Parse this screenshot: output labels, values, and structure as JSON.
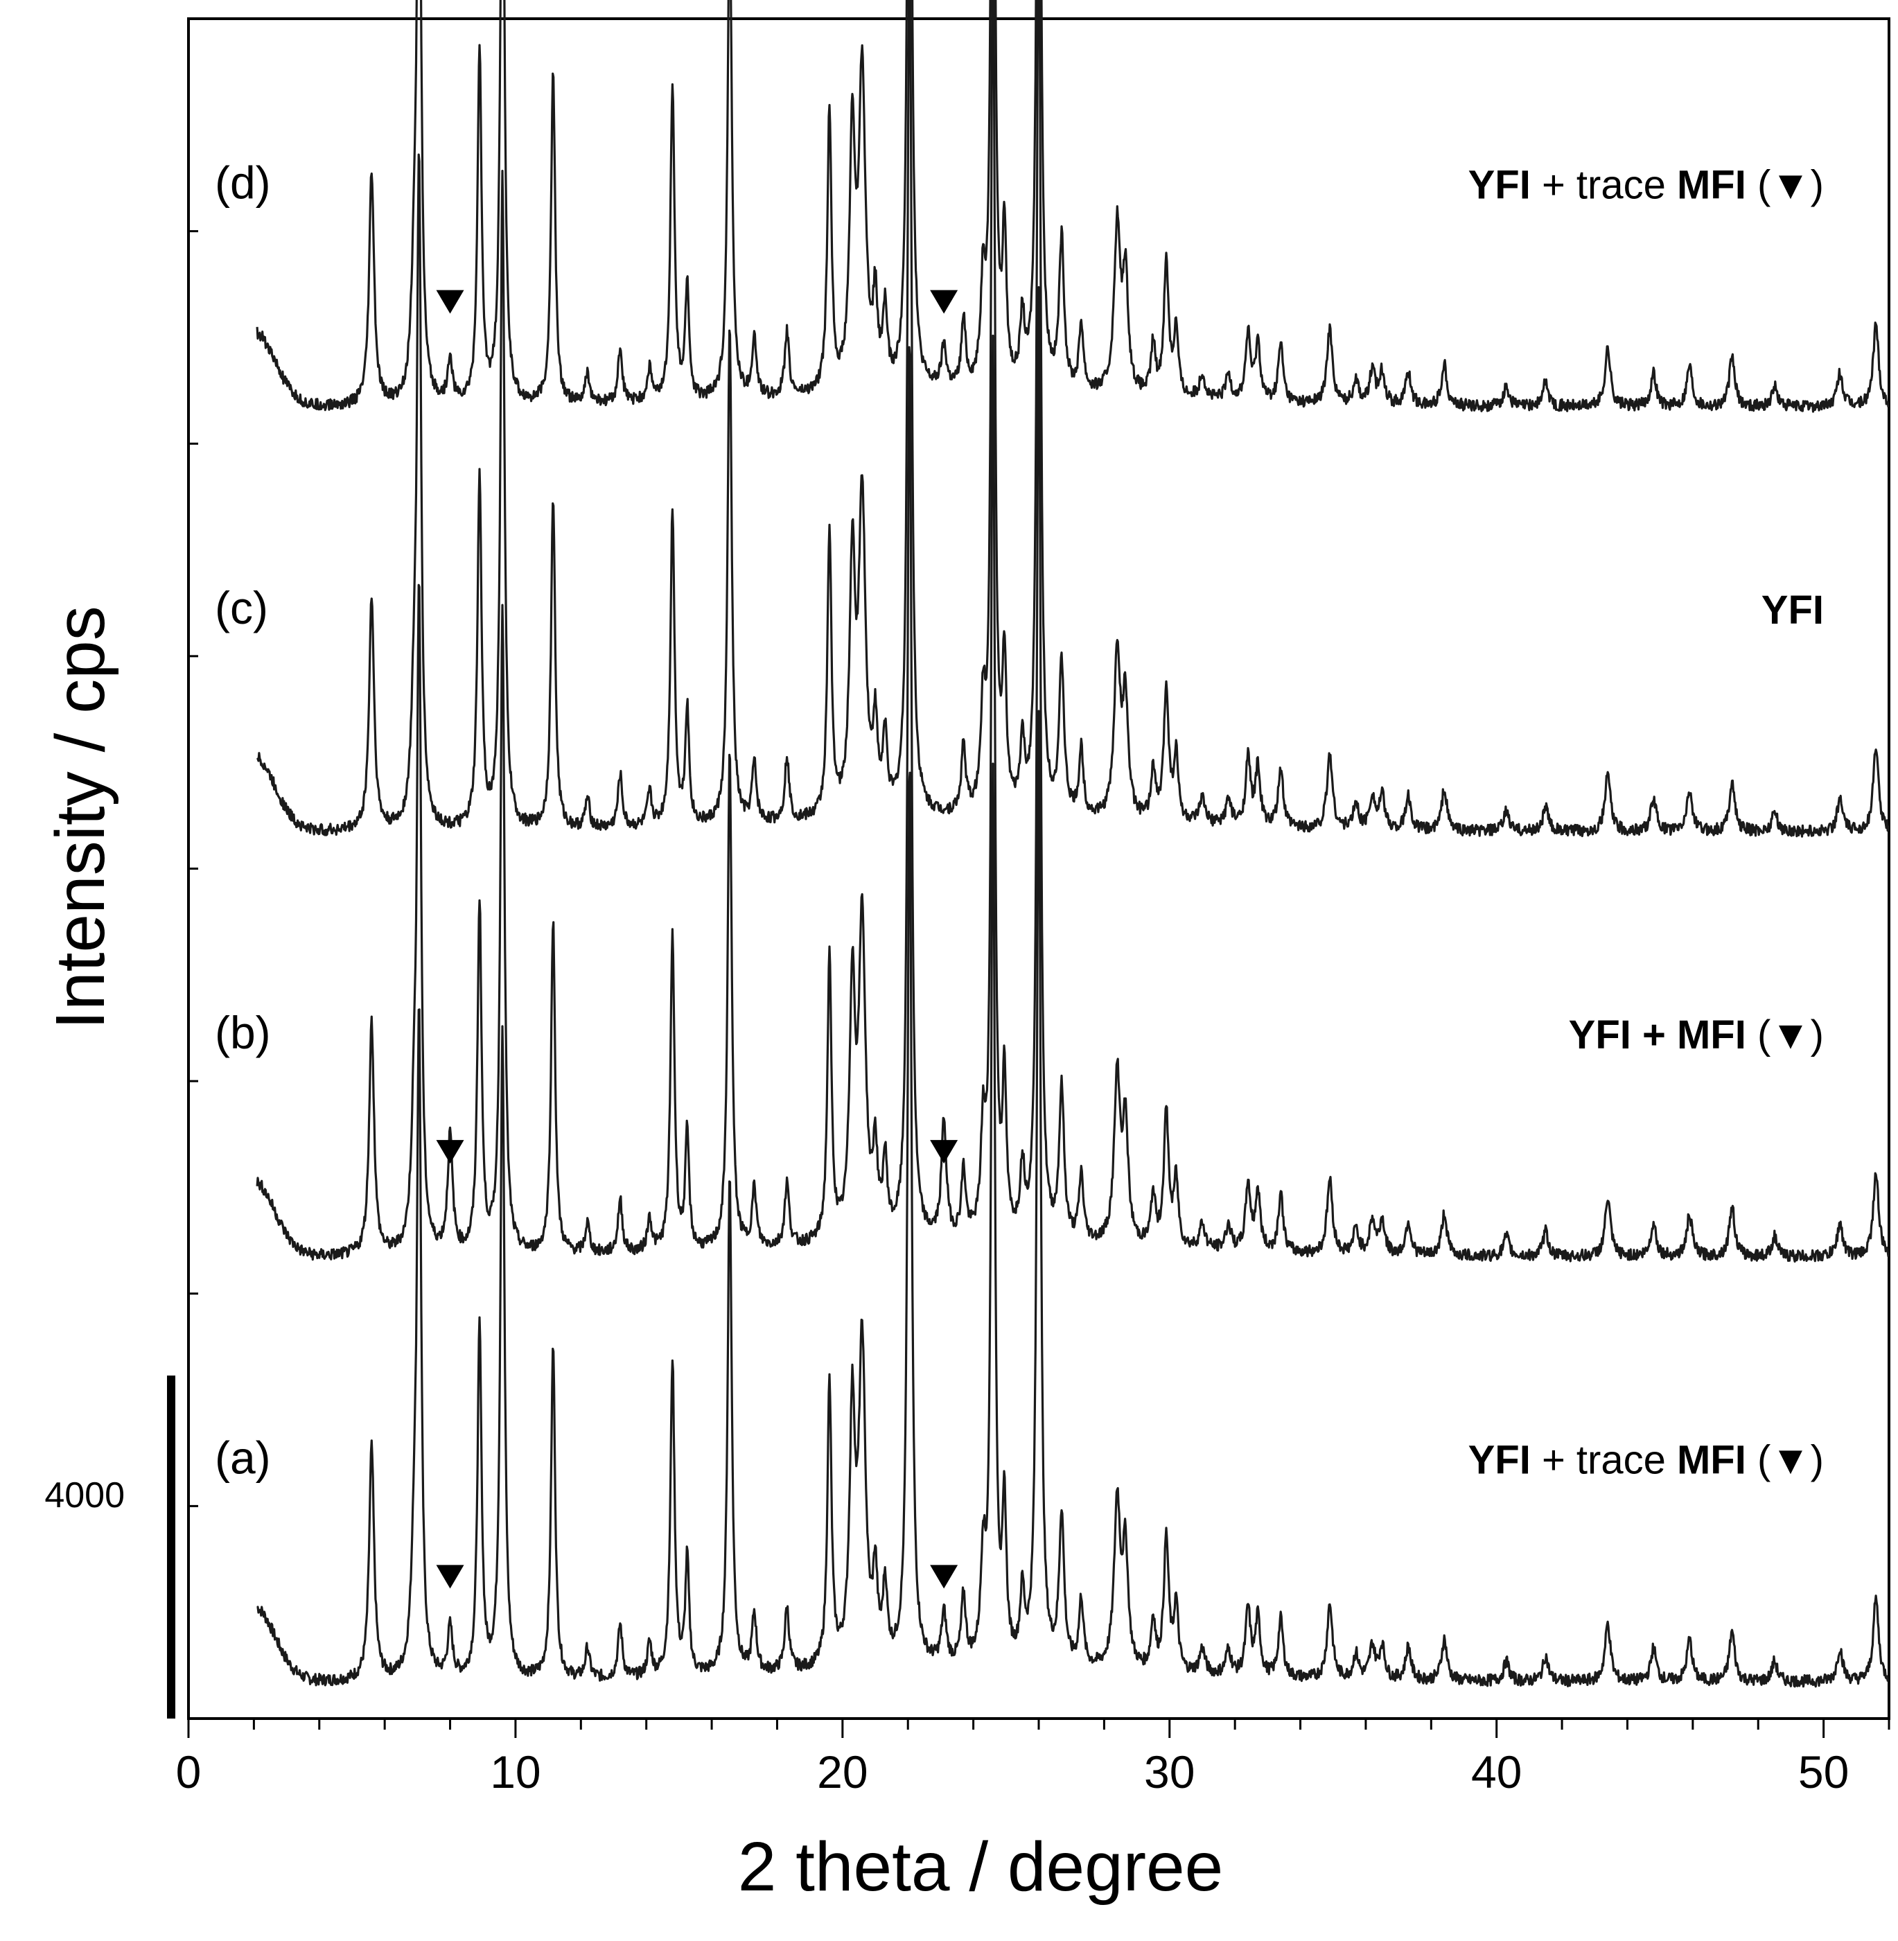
{
  "chart_data": {
    "type": "line",
    "title": "",
    "xlabel": "2 theta / degree",
    "ylabel": "Intensity / cps",
    "xlim": [
      0,
      52
    ],
    "x_ticks": [
      0,
      10,
      20,
      30,
      40,
      50
    ],
    "scale_bar": {
      "value": 4000,
      "label": "4000"
    },
    "marker_symbol": "▼",
    "baseline_min": 0.5,
    "y_range": [
      0,
      10200
    ],
    "offset_step": 2550,
    "peaks": [
      [
        5.6,
        1400,
        0.09
      ],
      [
        6.9,
        600,
        0.1
      ],
      [
        7.05,
        3900,
        0.075
      ],
      [
        8.9,
        2100,
        0.075
      ],
      [
        9.6,
        3900,
        0.075
      ],
      [
        11.15,
        2000,
        0.075
      ],
      [
        12.2,
        180,
        0.08
      ],
      [
        13.2,
        320,
        0.08
      ],
      [
        14.1,
        200,
        0.08
      ],
      [
        14.8,
        1900,
        0.075
      ],
      [
        15.25,
        700,
        0.07
      ],
      [
        16.55,
        3000,
        0.075
      ],
      [
        17.3,
        350,
        0.08
      ],
      [
        18.3,
        380,
        0.08
      ],
      [
        19.6,
        1700,
        0.075
      ],
      [
        20.3,
        1500,
        0.1
      ],
      [
        20.6,
        1900,
        0.12
      ],
      [
        21.0,
        500,
        0.08
      ],
      [
        21.3,
        450,
        0.08
      ],
      [
        22.05,
        5400,
        0.075
      ],
      [
        23.7,
        400,
        0.08
      ],
      [
        24.3,
        600,
        0.08
      ],
      [
        24.6,
        5350,
        0.07
      ],
      [
        24.95,
        900,
        0.07
      ],
      [
        25.5,
        400,
        0.08
      ],
      [
        26.0,
        5700,
        0.07
      ],
      [
        26.7,
        900,
        0.09
      ],
      [
        27.3,
        400,
        0.08
      ],
      [
        28.4,
        1000,
        0.11
      ],
      [
        28.65,
        700,
        0.1
      ],
      [
        29.5,
        300,
        0.08
      ],
      [
        29.9,
        800,
        0.09
      ],
      [
        30.2,
        400,
        0.08
      ],
      [
        31.0,
        150,
        0.1
      ],
      [
        31.8,
        150,
        0.1
      ],
      [
        32.4,
        400,
        0.09
      ],
      [
        32.7,
        350,
        0.09
      ],
      [
        33.4,
        350,
        0.09
      ],
      [
        34.9,
        450,
        0.1
      ],
      [
        35.7,
        150,
        0.1
      ],
      [
        36.2,
        200,
        0.1
      ],
      [
        36.5,
        200,
        0.1
      ],
      [
        37.3,
        200,
        0.1
      ],
      [
        38.4,
        250,
        0.1
      ],
      [
        40.3,
        120,
        0.1
      ],
      [
        41.5,
        150,
        0.1
      ],
      [
        43.4,
        350,
        0.1
      ],
      [
        44.8,
        200,
        0.1
      ],
      [
        45.9,
        250,
        0.1
      ],
      [
        47.2,
        300,
        0.1
      ],
      [
        48.5,
        120,
        0.1
      ],
      [
        50.5,
        200,
        0.1
      ],
      [
        51.6,
        500,
        0.1
      ]
    ],
    "series": [
      {
        "name": "(a)",
        "phase_bold_1": "YFI",
        "phase_normal": " + trace ",
        "phase_bold_2": "MFI",
        "phase_marker": " (▼)",
        "offset_index": 0,
        "markers_x": [
          8.0,
          23.1
        ],
        "mfi_peak_height": 300
      },
      {
        "name": "(b)",
        "phase_bold_1": "YFI + MFI",
        "phase_normal": "",
        "phase_bold_2": "",
        "phase_marker": " (▼)",
        "offset_index": 1,
        "markers_x": [
          8.0,
          23.1
        ],
        "mfi_peak_height": 700
      },
      {
        "name": "(c)",
        "phase_bold_1": "YFI",
        "phase_normal": "",
        "phase_bold_2": "",
        "phase_marker": "",
        "offset_index": 2,
        "markers_x": [],
        "mfi_peak_height": 0
      },
      {
        "name": "(d)",
        "phase_bold_1": "YFI",
        "phase_normal": " + trace ",
        "phase_bold_2": "MFI",
        "phase_marker": " (▼)",
        "offset_index": 3,
        "markers_x": [
          8.0,
          23.1
        ],
        "mfi_peak_height": 250
      }
    ]
  }
}
